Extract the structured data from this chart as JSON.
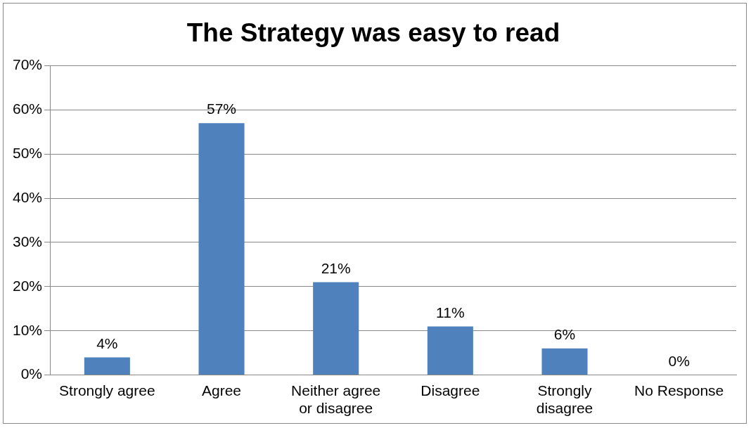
{
  "chart_data": {
    "type": "bar",
    "title": "The Strategy was easy to read",
    "categories": [
      "Strongly agree",
      "Agree",
      "Neither agree or disagree",
      "Disagree",
      "Strongly disagree",
      "No Response"
    ],
    "values": [
      4,
      57,
      21,
      11,
      6,
      0
    ],
    "value_labels": [
      "4%",
      "57%",
      "21%",
      "11%",
      "6%",
      "0%"
    ],
    "color": "#4f81bd",
    "ylim": [
      0,
      70
    ],
    "yticks": [
      {
        "value": 0,
        "label": "0%"
      },
      {
        "value": 10,
        "label": "10%"
      },
      {
        "value": 20,
        "label": "20%"
      },
      {
        "value": 30,
        "label": "30%"
      },
      {
        "value": 40,
        "label": "40%"
      },
      {
        "value": 50,
        "label": "50%"
      },
      {
        "value": 60,
        "label": "60%"
      },
      {
        "value": 70,
        "label": "70%"
      }
    ],
    "grid": "y",
    "legend": false
  }
}
